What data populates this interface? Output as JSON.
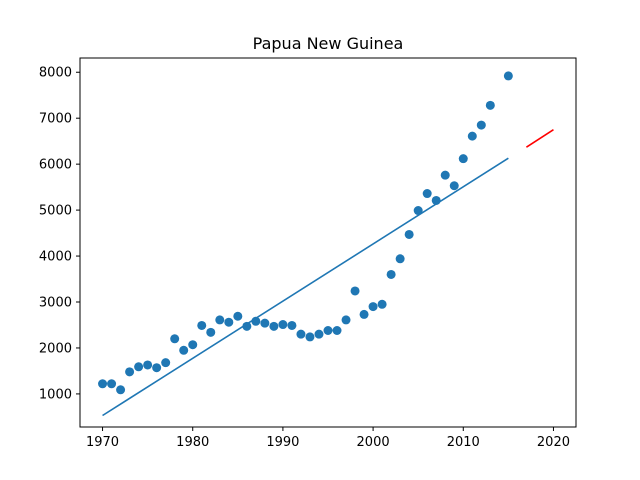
{
  "chart_data": {
    "type": "scatter",
    "title": "Papua New Guinea",
    "xlabel": "",
    "ylabel": "",
    "xlim": [
      1967.5,
      2022.5
    ],
    "ylim": [
      280,
      8310
    ],
    "xticks": [
      1970,
      1980,
      1990,
      2000,
      2010,
      2020
    ],
    "yticks": [
      1000,
      2000,
      3000,
      4000,
      5000,
      6000,
      7000,
      8000
    ],
    "grid": false,
    "points": {
      "color": "#1f77b4",
      "x": [
        1970,
        1971,
        1972,
        1973,
        1974,
        1975,
        1976,
        1977,
        1978,
        1979,
        1980,
        1981,
        1982,
        1983,
        1984,
        1985,
        1986,
        1987,
        1988,
        1989,
        1990,
        1991,
        1992,
        1993,
        1994,
        1995,
        1996,
        1997,
        1998,
        1999,
        2000,
        2001,
        2002,
        2003,
        2004,
        2005,
        2006,
        2007,
        2008,
        2009,
        2010,
        2011,
        2012,
        2013,
        2015
      ],
      "y": [
        1220,
        1220,
        1090,
        1480,
        1590,
        1630,
        1570,
        1680,
        2200,
        1950,
        2070,
        2490,
        2340,
        2610,
        2560,
        2690,
        2470,
        2580,
        2540,
        2470,
        2510,
        2490,
        2300,
        2240,
        2300,
        2380,
        2380,
        2610,
        3240,
        2730,
        2900,
        2950,
        3600,
        3940,
        4470,
        4990,
        5360,
        5210,
        5760,
        5530,
        6120,
        6610,
        6850,
        7280,
        7920
      ]
    },
    "fit_line": {
      "color": "#1f77b4",
      "x": [
        1970,
        2015
      ],
      "y": [
        530,
        6130
      ]
    },
    "forecast_line": {
      "color": "#ff0000",
      "x": [
        2017,
        2020
      ],
      "y": [
        6370,
        6750
      ]
    }
  }
}
